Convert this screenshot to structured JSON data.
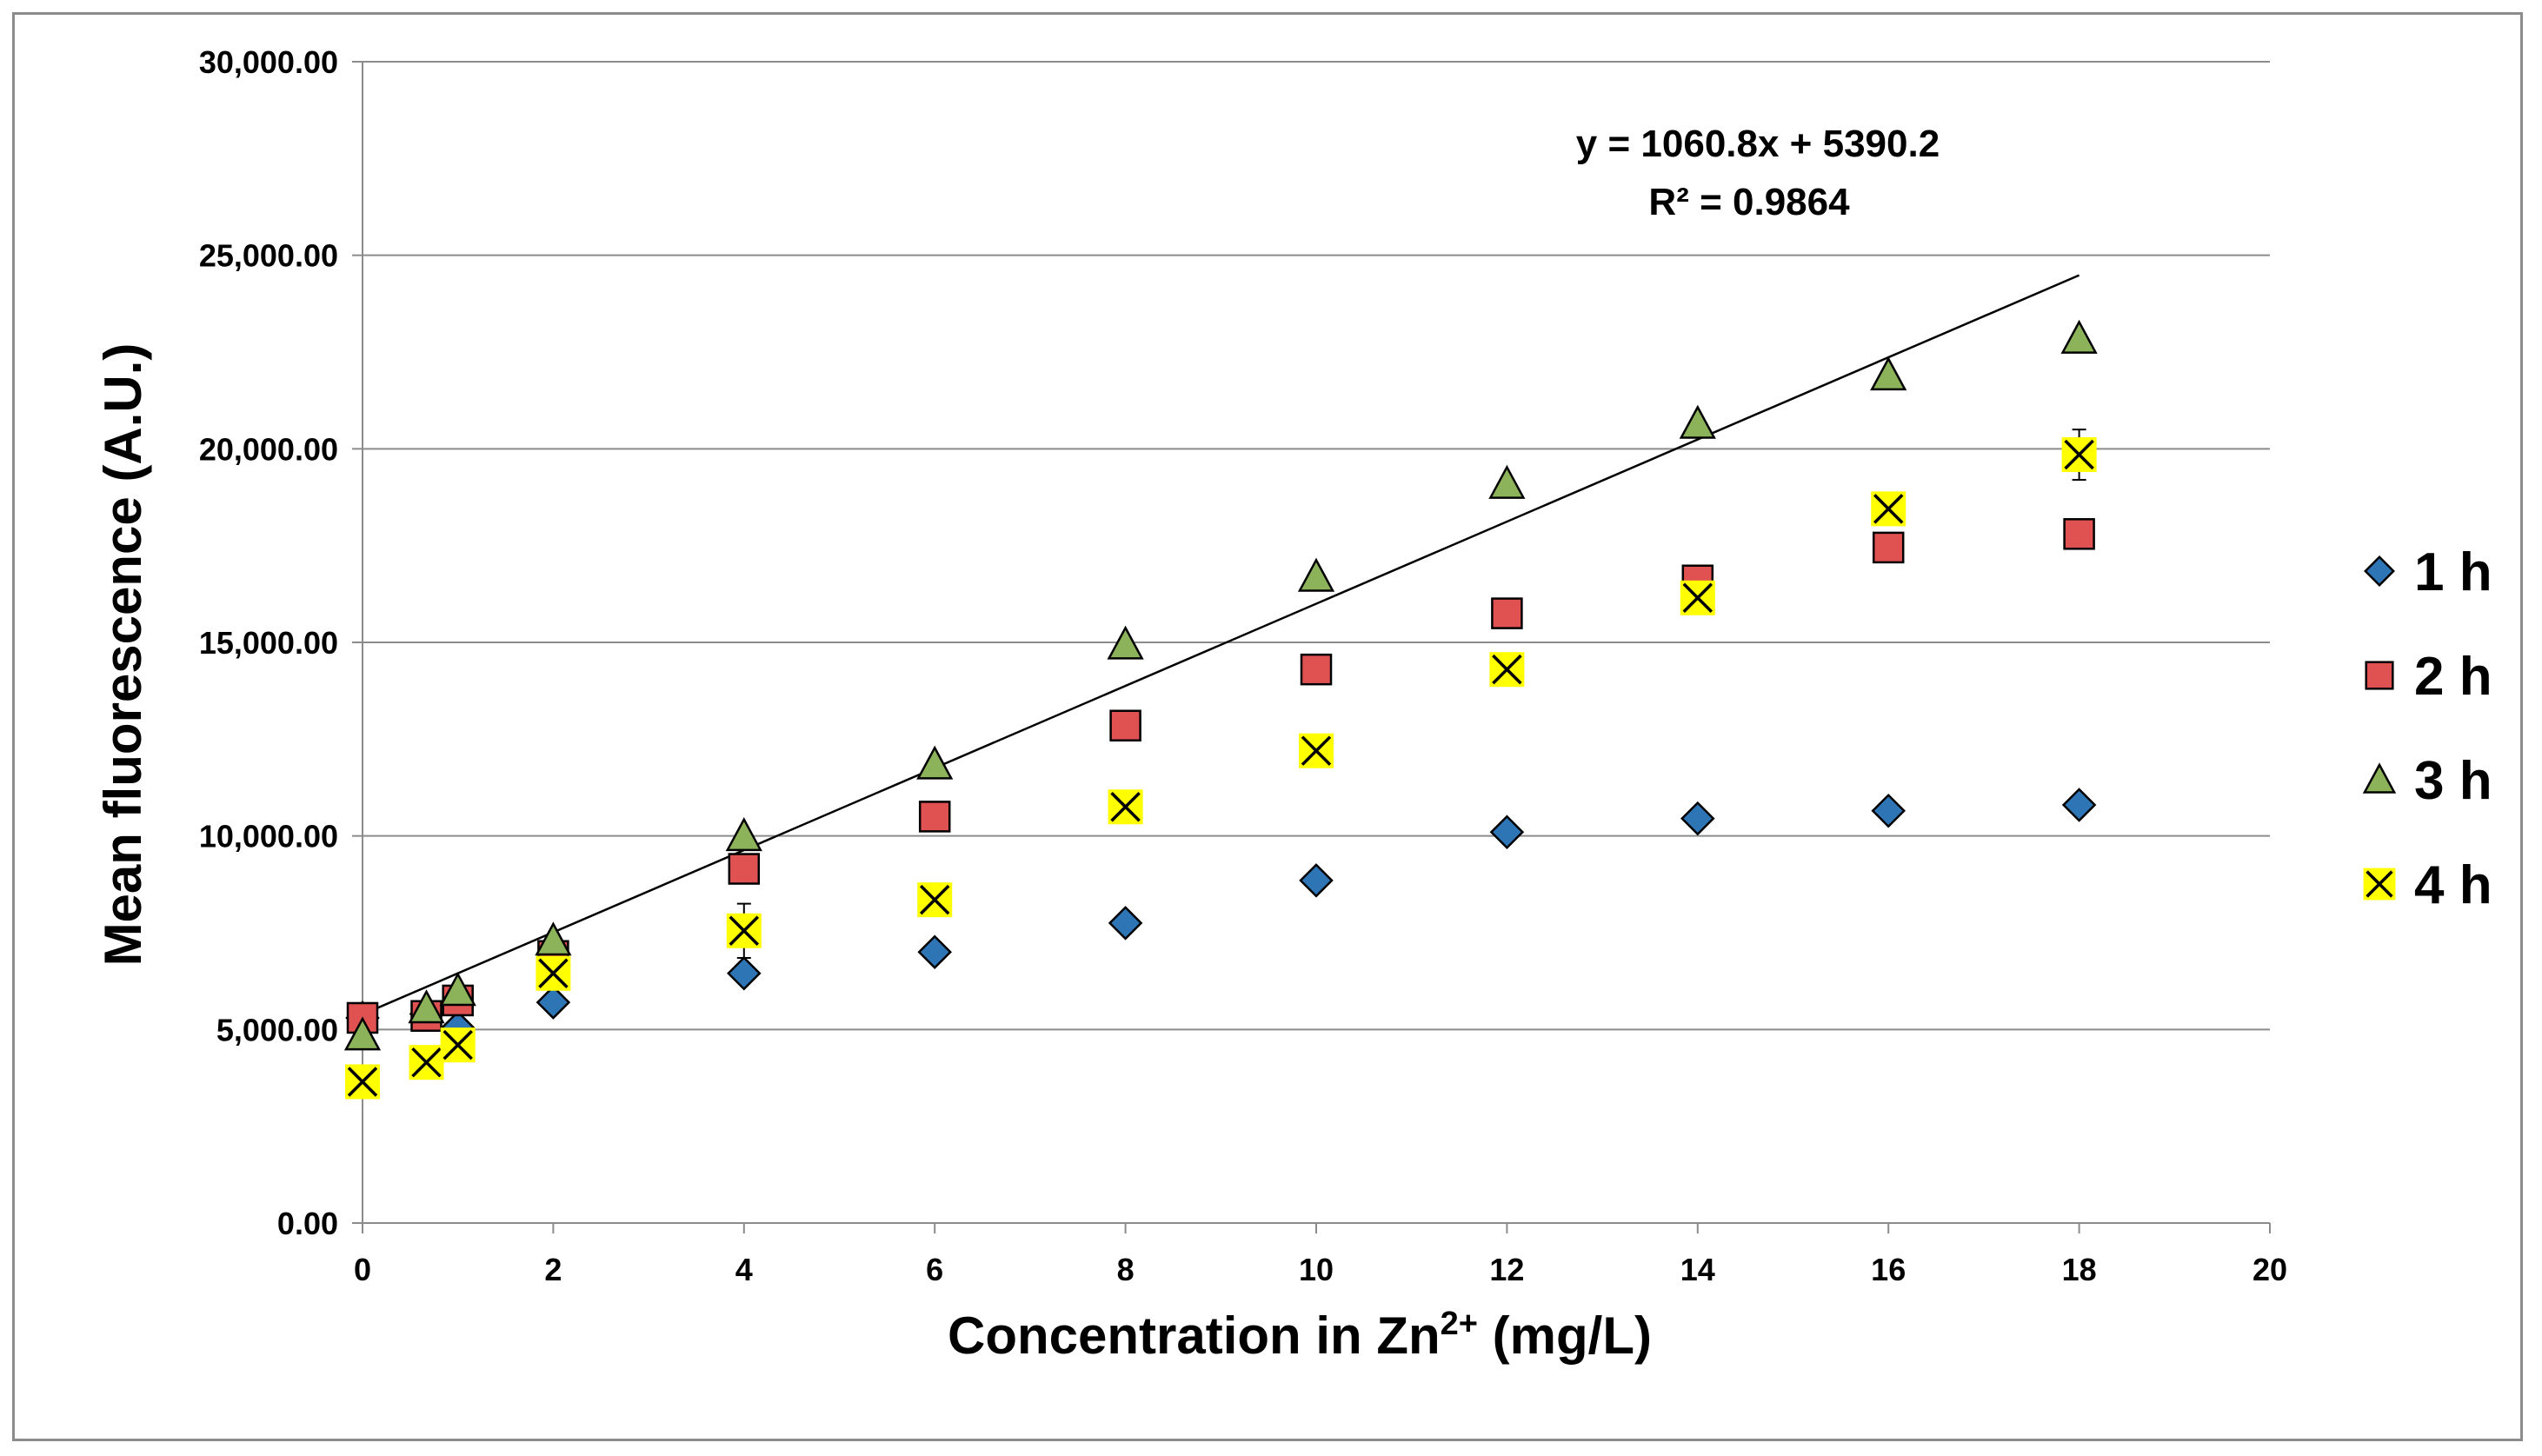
{
  "chart_data": {
    "type": "scatter",
    "title": "",
    "xlabel": {
      "text": "Concentration in Zn",
      "sup": "2+",
      "unit": " (mg/L)"
    },
    "ylabel": "Mean fluorescence (A.U.)",
    "xlim": [
      0,
      20
    ],
    "ylim": [
      0,
      30000
    ],
    "x_ticks": [
      0,
      2,
      4,
      6,
      8,
      10,
      12,
      14,
      16,
      18,
      20
    ],
    "x_tick_labels": [
      "0",
      "2",
      "4",
      "6",
      "8",
      "10",
      "12",
      "14",
      "16",
      "18",
      "20"
    ],
    "y_ticks": [
      0,
      5000,
      10000,
      15000,
      20000,
      25000,
      30000
    ],
    "y_tick_labels": [
      "0.00",
      "5,000.00",
      "10,000.00",
      "15,000.00",
      "20,000.00",
      "25,000.00",
      "30,000.00"
    ],
    "grid": "horizontal",
    "legend_position": "right",
    "series": [
      {
        "name": "1 h",
        "marker": "diamond",
        "color": "#2e75b6",
        "x": [
          0,
          0.67,
          1,
          2,
          4,
          6,
          8,
          10,
          12,
          14,
          16,
          18
        ],
        "y": [
          5300,
          5400,
          5050,
          5700,
          6450,
          7000,
          7750,
          8850,
          10100,
          10450,
          10650,
          10800
        ]
      },
      {
        "name": "2 h",
        "marker": "square",
        "color": "#e05252",
        "x": [
          0,
          0.67,
          1,
          2,
          4,
          6,
          8,
          10,
          12,
          14,
          16,
          18
        ],
        "y": [
          5300,
          5350,
          5750,
          6900,
          9150,
          10500,
          12850,
          14300,
          15750,
          16600,
          17450,
          17800
        ]
      },
      {
        "name": "3 h",
        "marker": "triangle",
        "color": "#8db35a",
        "x": [
          0,
          0.67,
          1,
          2,
          4,
          6,
          8,
          10,
          12,
          14,
          16,
          18
        ],
        "y": [
          4850,
          5550,
          6000,
          7300,
          10000,
          11850,
          14950,
          16700,
          19100,
          20650,
          21900,
          22850
        ]
      },
      {
        "name": "4 h",
        "marker": "x",
        "color": "#ffff00",
        "x": [
          0,
          0.67,
          1,
          2,
          4,
          6,
          8,
          10,
          12,
          14,
          16,
          18
        ],
        "y": [
          3650,
          4150,
          4600,
          6450,
          7550,
          8350,
          10750,
          12200,
          14300,
          16150,
          18450,
          19850
        ],
        "error": [
          0,
          0,
          0,
          0,
          700,
          0,
          0,
          0,
          0,
          0,
          0,
          650
        ]
      }
    ],
    "trendline": {
      "slope": 1060.8,
      "intercept": 5390.2,
      "x_range": [
        0,
        18
      ],
      "color": "#000000",
      "equation": "y = 1060.8x + 5390.2",
      "r_squared": "R² = 0.9864"
    }
  }
}
